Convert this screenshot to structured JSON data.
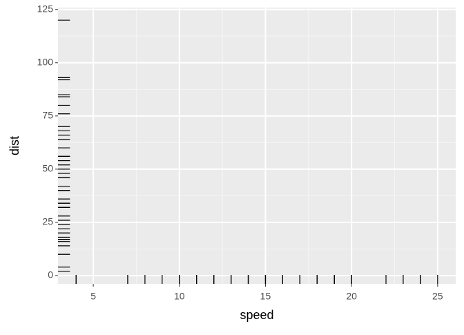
{
  "chart_data": {
    "type": "rug",
    "x_label": "speed",
    "y_label": "dist",
    "x": [
      4,
      4,
      7,
      7,
      8,
      9,
      10,
      10,
      10,
      11,
      11,
      12,
      12,
      12,
      12,
      13,
      13,
      13,
      13,
      14,
      14,
      14,
      14,
      15,
      15,
      15,
      16,
      16,
      17,
      17,
      17,
      18,
      18,
      18,
      18,
      19,
      19,
      19,
      20,
      20,
      20,
      20,
      20,
      22,
      23,
      24,
      24,
      24,
      24,
      25
    ],
    "y": [
      2,
      10,
      4,
      22,
      16,
      10,
      18,
      26,
      34,
      17,
      28,
      14,
      20,
      24,
      28,
      26,
      34,
      34,
      46,
      26,
      36,
      60,
      80,
      20,
      26,
      54,
      32,
      40,
      32,
      40,
      50,
      42,
      56,
      76,
      84,
      36,
      46,
      68,
      32,
      48,
      52,
      56,
      64,
      66,
      54,
      70,
      92,
      93,
      120,
      85
    ],
    "color": "#000000",
    "xlim": [
      2.95,
      26.05
    ],
    "ylim": [
      -3.9,
      125.9
    ],
    "xticks": [
      5,
      10,
      15,
      20,
      25
    ],
    "yticks": [
      0,
      25,
      50,
      75,
      100,
      125
    ],
    "xminor": [
      7.5,
      12.5,
      17.5,
      22.5
    ],
    "yminor": [
      12.5,
      37.5,
      62.5,
      87.5,
      112.5
    ],
    "grid": true
  }
}
